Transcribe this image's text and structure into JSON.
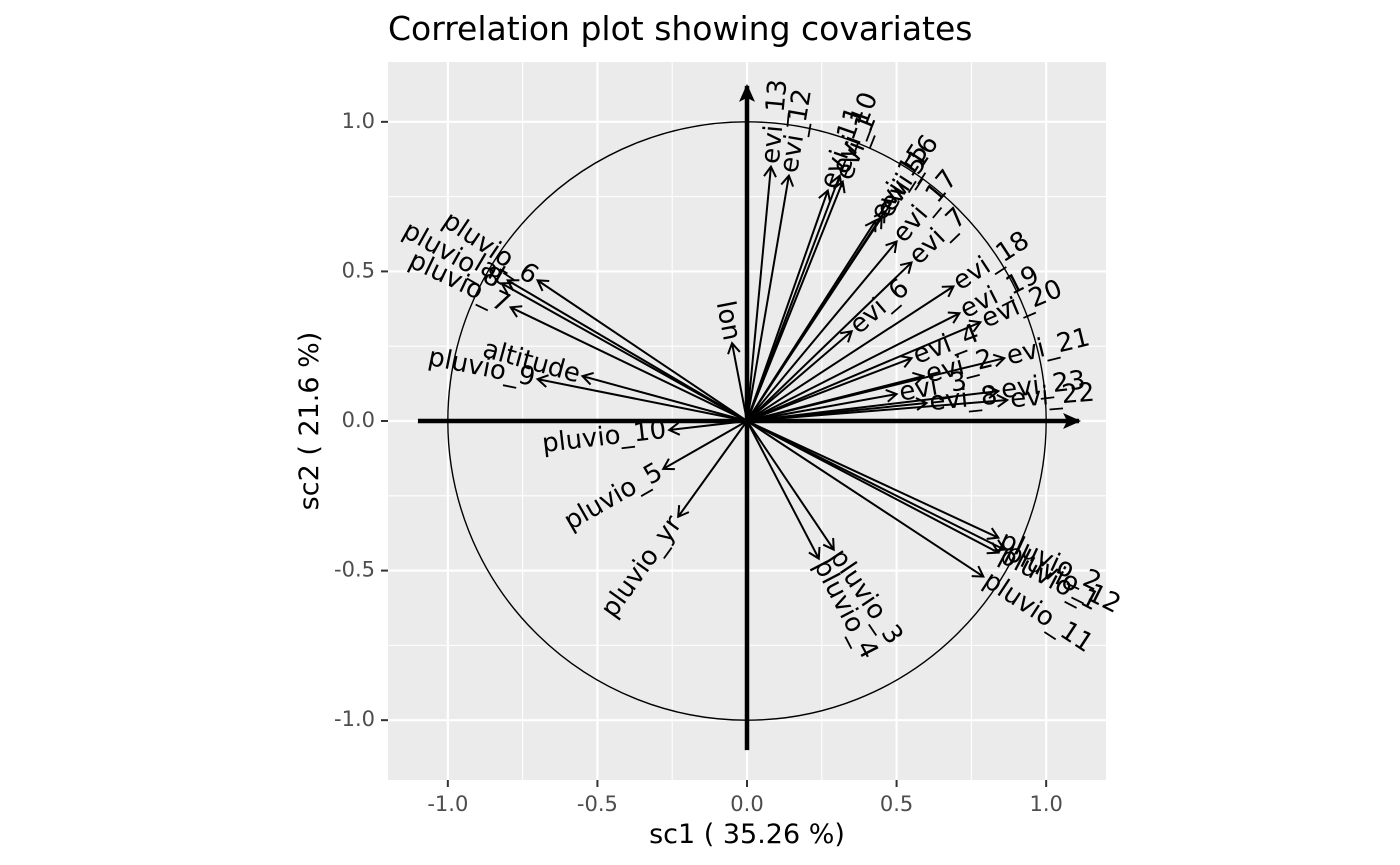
{
  "chart_data": {
    "type": "scatter",
    "subtype": "correlation-circle",
    "title": "Correlation plot showing covariates",
    "xlabel": "sc1 ( 35.26 %)",
    "ylabel": "sc2 ( 21.6 %)",
    "xlim": [
      -1.2,
      1.2
    ],
    "ylim": [
      -1.2,
      1.2
    ],
    "x_ticks": [
      -1.0,
      -0.5,
      0.0,
      0.5,
      1.0
    ],
    "y_ticks": [
      -1.0,
      -0.5,
      0.0,
      0.5,
      1.0
    ],
    "x_tick_labels": [
      "-1.0",
      "-0.5",
      "0.0",
      "0.5",
      "1.0"
    ],
    "y_tick_labels": [
      "-1.0",
      "-0.5",
      "0.0",
      "0.5",
      "1.0"
    ],
    "grid": true,
    "unit_circle": true,
    "variables": [
      {
        "name": "evi_13",
        "x": 0.08,
        "y": 0.85
      },
      {
        "name": "evi_12",
        "x": 0.14,
        "y": 0.82
      },
      {
        "name": "evi_11",
        "x": 0.27,
        "y": 0.77
      },
      {
        "name": "evi_10",
        "x": 0.31,
        "y": 0.82
      },
      {
        "name": "evi_1",
        "x": 0.32,
        "y": 0.8
      },
      {
        "name": "evi_15",
        "x": 0.43,
        "y": 0.67
      },
      {
        "name": "evi_16",
        "x": 0.46,
        "y": 0.7
      },
      {
        "name": "evi_5",
        "x": 0.45,
        "y": 0.68
      },
      {
        "name": "evi_17",
        "x": 0.5,
        "y": 0.6
      },
      {
        "name": "evi_7",
        "x": 0.55,
        "y": 0.53
      },
      {
        "name": "evi_6",
        "x": 0.35,
        "y": 0.3
      },
      {
        "name": "evi_18",
        "x": 0.69,
        "y": 0.45
      },
      {
        "name": "evi_19",
        "x": 0.71,
        "y": 0.36
      },
      {
        "name": "evi_20",
        "x": 0.78,
        "y": 0.33
      },
      {
        "name": "evi_4",
        "x": 0.55,
        "y": 0.21
      },
      {
        "name": "evi_2",
        "x": 0.59,
        "y": 0.15
      },
      {
        "name": "evi_21",
        "x": 0.86,
        "y": 0.21
      },
      {
        "name": "evi_3",
        "x": 0.5,
        "y": 0.09
      },
      {
        "name": "evi_8",
        "x": 0.6,
        "y": 0.06
      },
      {
        "name": "evi_23",
        "x": 0.84,
        "y": 0.1
      },
      {
        "name": "evi_22",
        "x": 0.87,
        "y": 0.07
      },
      {
        "name": "lat",
        "x": -0.8,
        "y": 0.47
      },
      {
        "name": "pluvio_6",
        "x": -0.7,
        "y": 0.47
      },
      {
        "name": "pluvio_8",
        "x": -0.82,
        "y": 0.46
      },
      {
        "name": "pluvio_7",
        "x": -0.79,
        "y": 0.38
      },
      {
        "name": "pluvio_9",
        "x": -0.7,
        "y": 0.14
      },
      {
        "name": "altitude",
        "x": -0.55,
        "y": 0.15
      },
      {
        "name": "lon",
        "x": -0.05,
        "y": 0.26
      },
      {
        "name": "pluvio_10",
        "x": -0.26,
        "y": -0.03
      },
      {
        "name": "pluvio_5",
        "x": -0.28,
        "y": -0.16
      },
      {
        "name": "pluvio_yr",
        "x": -0.23,
        "y": -0.32
      },
      {
        "name": "pluvio_3",
        "x": 0.29,
        "y": -0.43
      },
      {
        "name": "pluvio_4",
        "x": 0.24,
        "y": -0.46
      },
      {
        "name": "pluvio_2",
        "x": 0.84,
        "y": -0.39
      },
      {
        "name": "pluvio_12",
        "x": 0.86,
        "y": -0.43
      },
      {
        "name": "pluvio_1",
        "x": 0.84,
        "y": -0.44
      },
      {
        "name": "pluvio_11",
        "x": 0.79,
        "y": -0.52
      }
    ]
  }
}
